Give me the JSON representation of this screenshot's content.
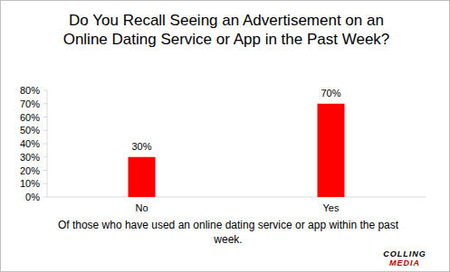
{
  "chart_data": {
    "type": "bar",
    "title": "Do You Recall Seeing an Advertisement on an Online Dating Service or App in the Past Week?",
    "x_label": "Of those who have used an online dating service or app within the past week.",
    "annotations": [
      "COLLING",
      "MEDIA"
    ],
    "categories": [
      "No",
      "Yes"
    ],
    "values": [
      30,
      70
    ],
    "value_labels": [
      "30%",
      "70%"
    ],
    "data_labels": true,
    "color": "#ff0000",
    "ylim": [
      0,
      80
    ],
    "yticks": [
      {
        "value": 0,
        "label": "0%"
      },
      {
        "value": 10,
        "label": "10%"
      },
      {
        "value": 20,
        "label": "20%"
      },
      {
        "value": 30,
        "label": "30%"
      },
      {
        "value": 40,
        "label": "40%"
      },
      {
        "value": 50,
        "label": "50%"
      },
      {
        "value": 60,
        "label": "60%"
      },
      {
        "value": 70,
        "label": "70%"
      },
      {
        "value": 80,
        "label": "80%"
      }
    ],
    "grid": false
  }
}
